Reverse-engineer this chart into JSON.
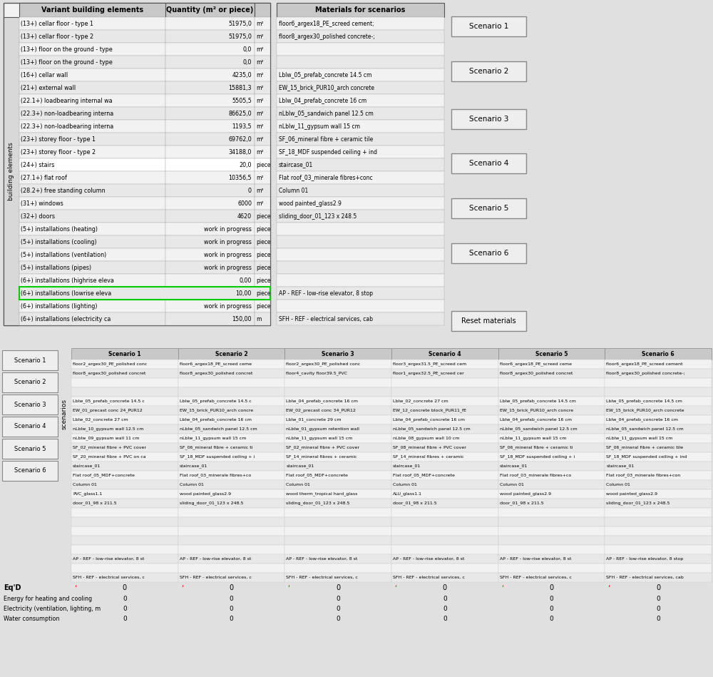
{
  "top_left_rows": [
    [
      "(13+) cellar floor - type 1",
      "51975,0",
      "m²"
    ],
    [
      "(13+) cellar floor - type 2",
      "51975,0",
      "m²"
    ],
    [
      "(13+) floor on the ground - type",
      "0,0",
      "m²"
    ],
    [
      "(13+) floor on the ground - type",
      "0,0",
      "m²"
    ],
    [
      "(16+) cellar wall",
      "4235,0",
      "m²"
    ],
    [
      "(21+) external wall",
      "15881,3",
      "m²"
    ],
    [
      "(22.1+) loadbearing internal wa",
      "5505,5",
      "m²"
    ],
    [
      "(22.3+) non-loadbearing interna",
      "86625,0",
      "m²"
    ],
    [
      "(22.3+) non-loadbearing interna",
      "1193,5",
      "m²"
    ],
    [
      "(23+) storey floor - type 1",
      "69762,0",
      "m²"
    ],
    [
      "(23+) storey floor - type 2",
      "34188,0",
      "m²"
    ],
    [
      "(24+) stairs",
      "20,0",
      "piece"
    ],
    [
      "(27.1+) flat roof",
      "10356,5",
      "m²"
    ],
    [
      "(28.2+) free standing column",
      "0",
      "m³"
    ],
    [
      "(31+) windows",
      "6000",
      "m²"
    ],
    [
      "(32+) doors",
      "4620",
      "piece"
    ],
    [
      "(5+) installations (heating)",
      "work in progress",
      "piece"
    ],
    [
      "(5+) installations (cooling)",
      "work in progress",
      "piece"
    ],
    [
      "(5+) installations (ventilation)",
      "work in progress",
      "piece"
    ],
    [
      "(5+) installations (pipes)",
      "work in progress",
      "piece"
    ],
    [
      "(6+) installations (highrise eleva",
      "0,00",
      "piece"
    ],
    [
      "(6+) installations (lowrise eleva",
      "10,00",
      "piece"
    ],
    [
      "(6+) installations (lighting)",
      "work in progress",
      "piece"
    ],
    [
      "(6+) installations (electricity ca",
      "150,00",
      "m"
    ]
  ],
  "top_right_materials": [
    "floor6_argex18_PE_screed cement;",
    "floor8_argex30_polished concrete-;",
    "",
    "",
    "Lblw_05_prefab_concrete 14.5 cm",
    "EW_15_brick_PUR10_arch concrete",
    "Lblw_04_prefab_concrete 16 cm",
    "nLblw_05_sandwich panel 12.5 cm",
    "nLblw_11_gypsum wall 15 cm",
    "SF_06_mineral fibre + ceramic tile",
    "SF_18_MDF suspended ceiling + ind",
    "staircase_01",
    "Flat roof_03_minerale fibres+conc",
    "Column 01",
    "wood painted_glass2.9",
    "sliding_door_01_123 x 248.5",
    "",
    "",
    "",
    "",
    "",
    "AP - REF - low-rise elevator, 8 stop",
    "",
    "SFH - REF - electrical services, cab"
  ],
  "scenario_buttons_top": [
    "Scenario 1",
    "Scenario 2",
    "Scenario 3",
    "Scenario 4",
    "Scenario 5",
    "Scenario 6"
  ],
  "reset_button": "Reset materials",
  "bottom_table_headers": [
    "Scenario 1",
    "Scenario 2",
    "Scenario 3",
    "Scenario 4",
    "Scenario 5",
    "Scenario 6"
  ],
  "bottom_left_buttons": [
    "Scenario 1",
    "Scenario 2",
    "Scenario 3",
    "Scenario 4",
    "Scenario 5",
    "Scenario 6"
  ],
  "bottom_rows": [
    [
      "floor2_argex30_PE_polished conc",
      "floor6_argex18_PE_screed ceme",
      "floor2_argex30_PE_polished conc",
      "floor3_ergex31.5_PE_screed cem",
      "floor6_argex18_PE_screed ceme",
      "floor6_argex18_PE_screed cement"
    ],
    [
      "floor8_argex30_polished concret",
      "floor8_argex30_polished concret",
      "floor4_cavity floor39.5_PVC",
      "floor1_argex32.5_PE_screed cer",
      "floor8_argex30_polished concret",
      "floor8_argex30_polished concrete-;"
    ],
    [
      "",
      "",
      "",
      "",
      "",
      ""
    ],
    [
      "",
      "",
      "",
      "",
      "",
      ""
    ],
    [
      "Lblw_05_prefab_concrete 14.5 c",
      "Lblw_05_prefab_concrete 14.5 c",
      "Lblw_04_prefab_concrete 16 cm",
      "Lblw_02_concrete 27 cm",
      "Lblw_05_prefab_concrete 14.5 cm",
      "Lblw_05_prefab_concrete 14.5 cm"
    ],
    [
      "EW_01_precast conc 24_PUR12",
      "EW_15_brick_PUR10_arch concre",
      "EW_02_precast conc 34_PUR12",
      "EW_12_concrete block_PUR11_fE",
      "EW_15_brick_PUR10_arch concre",
      "EW_15_brick_PUR10_arch concrete"
    ],
    [
      "Lblw_02_concrete 27 cm",
      "Lblw_04_prefab_concrete 16 cm",
      "Lblw_01_concrete 29 cm",
      "Lblw_04_prefab_concrete 16 cm",
      "Lblw_04_prefab_concrete 16 cm",
      "Lblw_04_prefab_concrete 16 cm"
    ],
    [
      "nLblw_10_gypsum wall 12.5 cm",
      "nLblw_05_sandwich panel 12.5 cm",
      "nLblw_01_gypsum retention wall",
      "nLblw_05_sandwich panel 12.5 cm",
      "nLblw_05_sandwich panel 12.5 cm",
      "nLblw_05_sandwich panel 12.5 cm"
    ],
    [
      "nLblw_09_gypsum wall 11 cm",
      "nLblw_11_gypsum wall 15 cm",
      "nLblw_11_gypsum wall 15 cm",
      "nLblw_08_gypsum wall 10 cm",
      "nLblw_11_gypsum wall 15 cm",
      "nLblw_11_gypsum wall 15 cm"
    ],
    [
      "SF_02_mineral fibre + PVC cover",
      "SF_06_mineral fibre + ceramic ti",
      "SF_02_mineral fibre + PVC cover",
      "SF_08_mineral fibre + PVC cover",
      "SF_06_mineral fibre + ceramic ti",
      "SF_06_mineral fibre + ceramic tile"
    ],
    [
      "SF_20_mineral fibre + PVC on ca",
      "SF_18_MDF suspended ceiling + i",
      "SF_14_mineral fibres + ceramic",
      "SF_14_mineral fibres + ceramic",
      "SF_18_MDF suspended ceiling + i",
      "SF_18_MDF suspended ceiling + ind"
    ],
    [
      "staircase_01",
      "staircase_01",
      "staircase_01",
      "staircase_01",
      "staircase_01",
      "staircase_01"
    ],
    [
      "Flat roof_05_MDF+concrete",
      "Flat roof_03_minerale fibres+co",
      "Flat roof_05_MDF+concrete",
      "Flat roof_05_MDF+concrete",
      "Flat roof_03_minerale fibres+co",
      "Flat roof_03_minerale fibres+con"
    ],
    [
      "Column 01",
      "Column 01",
      "Column 01",
      "Column 01",
      "Column 01",
      "Column 01"
    ],
    [
      "PVC_glass1.1",
      "wood painted_glass2.9",
      "wood therm_tropical hard_glass",
      "ALU_glass1.1",
      "wood painted_glass2.9",
      "wood painted_glass2.9"
    ],
    [
      "door_01_98 x 211.5",
      "sliding_door_01_123 x 248.5",
      "sliding_door_01_123 x 248.5",
      "door_01_98 x 211.5",
      "door_01_98 x 211.5",
      "sliding_door_01_123 x 248.5"
    ],
    [
      "",
      "",
      "",
      "",
      "",
      ""
    ],
    [
      "",
      "",
      "",
      "",
      "",
      ""
    ],
    [
      "",
      "",
      "",
      "",
      "",
      ""
    ],
    [
      "",
      "",
      "",
      "",
      "",
      ""
    ],
    [
      "",
      "",
      "",
      "",
      "",
      ""
    ],
    [
      "AP - REF - low-rise elevator, 8 st",
      "AP - REF - low-rise elevator, 8 st",
      "AP - REF - low-rise elevator, 8 st",
      "AP - REF - low-rise elevator, 8 st",
      "AP - REF - low-rise elevator, 8 st",
      "AP - REF - low-rise elevator, 8 stop"
    ],
    [
      "",
      "",
      "",
      "",
      "",
      ""
    ],
    [
      "SFH - REF - electrical services, c",
      "SFH - REF - electrical services, c",
      "SFH - REF - electrical services, c",
      "SFH - REF - electrical services, c",
      "SFH - REF - electrical services, c",
      "SFH - REF - electrical services, cab"
    ]
  ],
  "eq_d_label": "Eq'D",
  "eq_d_values": [
    "0",
    "0",
    "0",
    "0",
    "0",
    "0"
  ],
  "bottom_metrics": [
    [
      "Energy for heating and cooling",
      "0",
      "0",
      "0",
      "0",
      "0",
      "0"
    ],
    [
      "Electricity (ventilation, lighting, m",
      "0",
      "0",
      "0",
      "0",
      "0",
      "0"
    ],
    [
      "Water consumption",
      "0",
      "0",
      "0",
      "0",
      "0",
      "0"
    ]
  ],
  "bg_color": "#e0e0e0",
  "header_bg": "#c8c8c8",
  "cell_bg_even": "#f2f2f2",
  "cell_bg_odd": "#e8e8e8",
  "cell_bg_white": "#ffffff",
  "cell_bg_rotlabel": "#d8d8d8",
  "button_bg": "#eeeeee",
  "border_color": "#888888",
  "border_dark": "#555555",
  "green_border_color": "#00cc00",
  "text_color": "#000000"
}
